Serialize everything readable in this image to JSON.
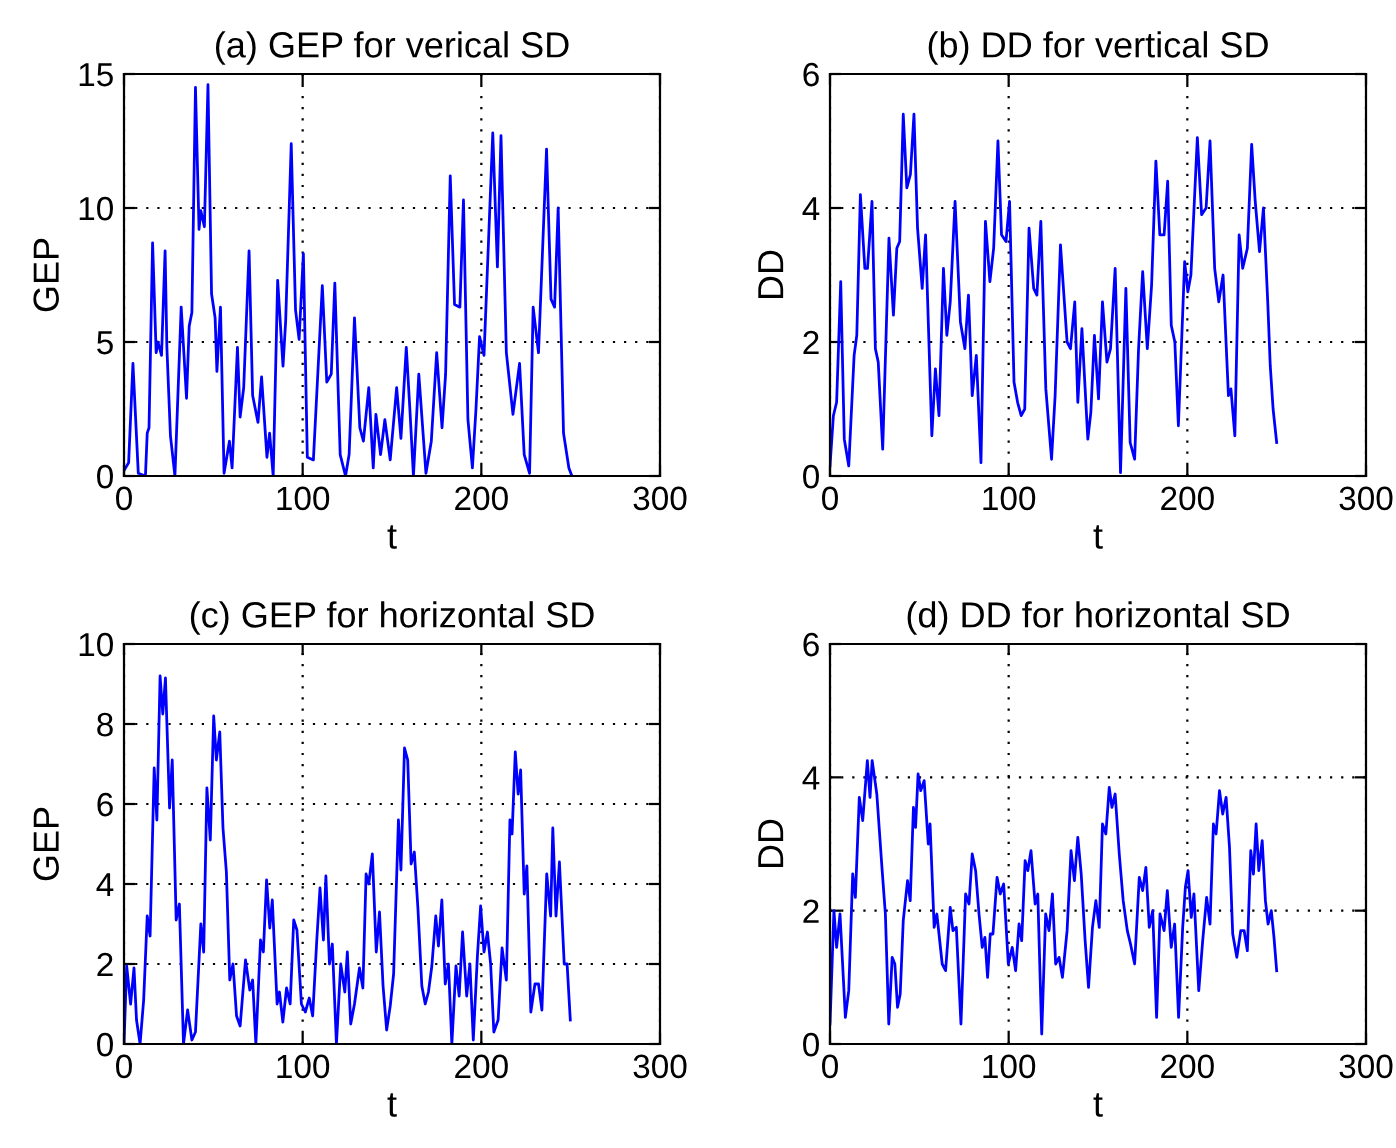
{
  "chart_data": [
    {
      "type": "line",
      "title": "(a) GEP for verical SD",
      "xlabel": "t",
      "ylabel": "GEP",
      "xlim": [
        0,
        300
      ],
      "xticks": [
        0,
        100,
        200,
        300
      ],
      "ylim": [
        0,
        15
      ],
      "yticks": [
        0,
        5,
        10,
        15
      ],
      "grid": true,
      "line_style": "solid",
      "marker": "none",
      "series": [
        {
          "color": "#0000ff",
          "x": [
            0,
            2.6,
            5,
            8,
            12,
            13,
            14,
            16,
            18,
            19,
            21,
            23,
            24,
            26,
            28.5,
            32,
            35,
            36.5,
            38,
            40,
            42,
            43,
            45,
            47,
            49,
            51,
            52,
            54,
            56,
            59,
            60.5,
            63.5,
            65,
            67,
            70,
            72,
            75,
            77,
            80,
            81.5,
            83.5,
            86,
            89,
            90.5,
            93.6,
            96,
            98,
            100.4,
            102.6,
            106,
            111,
            113.5,
            116,
            118,
            121,
            124,
            126,
            129,
            132,
            134,
            137,
            139.5,
            141,
            143.6,
            146,
            149,
            152.6,
            155,
            158,
            160,
            162,
            165,
            169,
            172,
            175,
            178,
            180,
            182.6,
            185,
            188,
            190,
            192.5,
            195,
            197,
            199,
            201.5,
            206.4,
            209,
            211,
            214,
            217.7,
            221.4,
            224,
            227,
            229,
            232,
            236.5,
            239,
            241,
            243,
            246,
            249,
            250.7
          ],
          "values": [
            0.2,
            0.5,
            4.2,
            0.1,
            0,
            1.6,
            1.8,
            8.7,
            4.6,
            5,
            4.5,
            8.4,
            4.8,
            1.5,
            0,
            6.3,
            2.9,
            5.6,
            6.1,
            14.5,
            9.2,
            9.9,
            9.3,
            14.6,
            6.8,
            5.9,
            3.9,
            6.3,
            0.1,
            1.3,
            0.3,
            4.8,
            2.2,
            3.3,
            8.4,
            3,
            2,
            3.7,
            0.7,
            1.6,
            0,
            7.3,
            4.1,
            5.8,
            12.4,
            6.2,
            5.1,
            8.3,
            0.7,
            0.6,
            7.1,
            3.5,
            3.8,
            7.2,
            0.8,
            0,
            0.8,
            5.9,
            1.8,
            1.3,
            3.3,
            0.3,
            2.3,
            0.8,
            2.1,
            0.6,
            3.3,
            1.4,
            4.8,
            2.5,
            0,
            3.8,
            0.1,
            1.3,
            4.6,
            1.8,
            3.8,
            11.2,
            6.4,
            6.3,
            10.3,
            2.1,
            0.3,
            2.5,
            5.2,
            4.5,
            12.8,
            7.8,
            12.7,
            4.6,
            2.3,
            4.2,
            0.8,
            0.1,
            6.3,
            4.6,
            12.2,
            6.6,
            6.3,
            10,
            1.6,
            0.3,
            0
          ]
        }
      ]
    },
    {
      "type": "line",
      "title": "(b) DD for vertical SD",
      "xlabel": "t",
      "ylabel": "DD",
      "xlim": [
        0,
        300
      ],
      "xticks": [
        0,
        100,
        200,
        300
      ],
      "ylim": [
        0,
        6
      ],
      "yticks": [
        0,
        2,
        4,
        6
      ],
      "grid": true,
      "line_style": "solid",
      "marker": "none",
      "series": [
        {
          "color": "#0000ff",
          "x": [
            0,
            1.9,
            3.7,
            6,
            8,
            10.5,
            13.5,
            15,
            17,
            19.5,
            21,
            23.5,
            25.4,
            27,
            29.5,
            33,
            35.5,
            37.4,
            39,
            41,
            43,
            45,
            47,
            49,
            51.6,
            53.5,
            57,
            59,
            61,
            63.5,
            65.4,
            67.3,
            70,
            73,
            75.5,
            77.5,
            79.6,
            81.9,
            84.5,
            87,
            89.5,
            91.6,
            94,
            96,
            98.5,
            100.5,
            103,
            105,
            107,
            109,
            111.4,
            114,
            115.8,
            118,
            120.8,
            124,
            126,
            129,
            132.7,
            134.6,
            137,
            138.7,
            141,
            144.3,
            146,
            148,
            150.3,
            152.5,
            155,
            157,
            159.6,
            162.6,
            165.6,
            168,
            170.5,
            172.7,
            175,
            177.6,
            180,
            182.4,
            184.6,
            187,
            189,
            191,
            193,
            195,
            198.5,
            200.3,
            202,
            205.6,
            208,
            210.5,
            212.7,
            215.3,
            217.6,
            220,
            223,
            224.4,
            226.6,
            229,
            231,
            233.6,
            236,
            238,
            240.4,
            242.6,
            245,
            246.4,
            248,
            250
          ],
          "values": [
            0.15,
            0.9,
            1.1,
            2.9,
            0.55,
            0.15,
            1.8,
            2.1,
            4.2,
            3.1,
            3.1,
            4.1,
            1.9,
            1.7,
            0.4,
            3.55,
            2.4,
            3.4,
            3.5,
            5.4,
            4.3,
            4.5,
            5.4,
            3.7,
            2.8,
            3.6,
            0.6,
            1.6,
            0.9,
            3.1,
            2.1,
            2.6,
            4.1,
            2.3,
            1.9,
            2.7,
            1.2,
            1.8,
            0.2,
            3.8,
            2.9,
            3.4,
            5,
            3.6,
            3.5,
            4.1,
            1.4,
            1.1,
            0.9,
            1,
            3.7,
            2.8,
            2.7,
            3.8,
            1.3,
            0.25,
            1.2,
            3.45,
            2,
            1.9,
            2.6,
            1.1,
            2.2,
            0.55,
            0.95,
            2.1,
            1.15,
            2.6,
            1.7,
            1.9,
            3.1,
            0.05,
            2.8,
            0.5,
            0.25,
            1.9,
            3.05,
            1.9,
            2.85,
            4.7,
            3.6,
            3.6,
            4.4,
            2.25,
            2,
            0.75,
            3.2,
            2.75,
            3,
            5.05,
            3.9,
            4,
            5,
            3.1,
            2.6,
            3,
            1.2,
            1.3,
            0.6,
            3.6,
            3.1,
            3.4,
            4.95,
            4.1,
            3.35,
            4,
            2.6,
            1.65,
            1.0,
            0.5
          ]
        }
      ]
    },
    {
      "type": "line",
      "title": "(c) GEP for horizontal SD",
      "xlabel": "t",
      "ylabel": "GEP",
      "xlim": [
        0,
        300
      ],
      "xticks": [
        0,
        100,
        200,
        300
      ],
      "ylim": [
        0,
        10
      ],
      "yticks": [
        0,
        2,
        4,
        6,
        8,
        10
      ],
      "grid": true,
      "line_style": "solid",
      "marker": "none",
      "series": [
        {
          "color": "#0000ff",
          "x": [
            0,
            1.5,
            3.7,
            5.6,
            7,
            9,
            11,
            13,
            14.6,
            16.9,
            18.4,
            20.2,
            21.7,
            23.2,
            25.5,
            27,
            29.2,
            31,
            33.3,
            35.6,
            38,
            40,
            43,
            44.6,
            46.4,
            48.3,
            50.2,
            51.7,
            53.6,
            55.4,
            57.3,
            59.2,
            61,
            63,
            65,
            68,
            70.4,
            72,
            73.8,
            76.4,
            78,
            79.8,
            81.6,
            83,
            85.7,
            87,
            88.9,
            91,
            93,
            95,
            96.8,
            99.3,
            101.5,
            103.7,
            105.6,
            107.9,
            109.7,
            111.6,
            113,
            115,
            116.6,
            118.9,
            121.3,
            123.6,
            125,
            126.9,
            129,
            131.8,
            133.7,
            135.5,
            137,
            139,
            141.2,
            143,
            145,
            147,
            149,
            150.9,
            153.6,
            155,
            157,
            158.8,
            160.7,
            162.5,
            164.5,
            166.7,
            168.6,
            170.4,
            172.3,
            174.5,
            176,
            177.9,
            179.8,
            181.6,
            183.5,
            185.8,
            187.6,
            189.5,
            191.8,
            193.6,
            195.5,
            197.8,
            199.6,
            201.5,
            203.4,
            205.2,
            207,
            209.4,
            211.6,
            214,
            216,
            217.2,
            219,
            220.6,
            222,
            224,
            225.5,
            227.7,
            230,
            232,
            233.9,
            236.6,
            238.8,
            240,
            241.8,
            243.7,
            246.4,
            248,
            249.8
          ],
          "values": [
            0,
            1.95,
            1,
            1.9,
            0.6,
            0,
            1.1,
            3.2,
            2.7,
            6.9,
            5.6,
            9.2,
            8.25,
            9.15,
            5.9,
            7.1,
            3.1,
            3.5,
            0,
            0.85,
            0.1,
            0.3,
            3,
            2.3,
            6.4,
            5.1,
            8.2,
            7.1,
            7.8,
            5.4,
            4.3,
            1.6,
            2,
            0.7,
            0.45,
            2.1,
            1.35,
            1.6,
            0,
            2.6,
            2.3,
            4.1,
            2.9,
            3.6,
            1,
            1.3,
            0.55,
            1.4,
            1,
            3.1,
            2.85,
            1,
            0.8,
            1.15,
            0.7,
            2.6,
            3.9,
            2.6,
            4.2,
            2,
            2.5,
            0,
            2,
            1.3,
            2.3,
            0.5,
            1,
            1.9,
            1.4,
            4.25,
            4,
            4.75,
            2.3,
            3.3,
            1.45,
            0.35,
            0.95,
            1.75,
            5.6,
            4.35,
            7.4,
            7.1,
            4.5,
            4.8,
            3.4,
            1.45,
            1,
            1.3,
            1.95,
            3.2,
            2.45,
            3.6,
            1.5,
            2,
            0,
            1.95,
            1.2,
            2.8,
            1.2,
            2,
            0.1,
            2.2,
            3.45,
            2.3,
            2.8,
            2,
            0.3,
            0.6,
            2.4,
            1.6,
            5.6,
            5.25,
            7.3,
            6.25,
            6.85,
            3.75,
            4.45,
            0.8,
            1.5,
            1.5,
            0.85,
            4.25,
            3.2,
            5.4,
            3.2,
            4.55,
            2,
            2,
            0.6
          ]
        }
      ]
    },
    {
      "type": "line",
      "title": "(d) DD for horizontal SD",
      "xlabel": "t",
      "ylabel": "DD",
      "xlim": [
        0,
        300
      ],
      "xticks": [
        0,
        100,
        200,
        300
      ],
      "ylim": [
        0,
        6
      ],
      "yticks": [
        0,
        2,
        4,
        6
      ],
      "grid": true,
      "line_style": "solid",
      "marker": "none",
      "series": [
        {
          "color": "#0000ff",
          "x": [
            0,
            2.2,
            3.7,
            5.6,
            8.6,
            10.5,
            12.7,
            14.2,
            16.4,
            18.3,
            20.9,
            22.4,
            23.6,
            26.2,
            29.2,
            31,
            32.9,
            34.8,
            36.3,
            37.8,
            39.3,
            41,
            43.4,
            44.9,
            46.7,
            47.9,
            49.3,
            50.8,
            52.7,
            55,
            56,
            58.3,
            59.8,
            62.8,
            64.7,
            67.3,
            68.8,
            70.7,
            73.3,
            75.9,
            77.8,
            79.6,
            81.5,
            83.4,
            85.2,
            86.7,
            88.2,
            89.7,
            91.2,
            93.5,
            95.3,
            97.2,
            99.8,
            102,
            103.9,
            105.8,
            107.3,
            109.2,
            110.7,
            112.5,
            114.8,
            116.3,
            118.5,
            120.7,
            122.6,
            124.5,
            126.3,
            128.2,
            130.1,
            132.7,
            134.9,
            136.8,
            138.7,
            140.6,
            142.8,
            144.7,
            146.9,
            148.8,
            150.7,
            152.5,
            154.4,
            156.3,
            157.8,
            159.6,
            161.9,
            164.1,
            166.4,
            168.2,
            170.5,
            173.1,
            175,
            176.8,
            178.7,
            180.6,
            182.8,
            184.7,
            187,
            188.8,
            191,
            192.9,
            195.1,
            197.4,
            198.9,
            200.4,
            202.2,
            203.7,
            206.4,
            208.6,
            210.8,
            212.7,
            214.6,
            216.1,
            218,
            219.8,
            221.7,
            223.6,
            225.4,
            227.7,
            229.9,
            231.8,
            233.6,
            235.5,
            237,
            238.5,
            240,
            241.9,
            243.7,
            245.2,
            247,
            248.5,
            250
          ],
          "values": [
            0.3,
            2,
            1.45,
            1.95,
            0.4,
            0.8,
            2.55,
            2.2,
            3.7,
            3.35,
            4.25,
            3.7,
            4.25,
            3.75,
            2.6,
            1.95,
            0.3,
            1.3,
            1.2,
            0.55,
            0.75,
            1.85,
            2.45,
            2.15,
            3.55,
            3.25,
            4.05,
            3.8,
            3.95,
            3,
            3.3,
            1.75,
            1.95,
            1.2,
            1.1,
            2.05,
            1.7,
            1.75,
            0.3,
            2.25,
            2.1,
            2.85,
            2.6,
            1.95,
            1.45,
            1.6,
            1,
            1.65,
            1.65,
            2.5,
            2.25,
            2.4,
            1.2,
            1.45,
            1.1,
            1.8,
            1.55,
            2.75,
            2.6,
            2.9,
            2.1,
            2.25,
            0.15,
            1.95,
            1.7,
            2.25,
            1.2,
            1.3,
            1,
            1.7,
            2.9,
            2.45,
            3.1,
            2.55,
            1.55,
            0.85,
            1.75,
            2.15,
            1.75,
            3.3,
            3.15,
            3.85,
            3.55,
            3.75,
            2.85,
            2.15,
            1.7,
            1.5,
            1.2,
            2.5,
            2.3,
            2.65,
            1.75,
            2,
            0.4,
            1.95,
            1.7,
            2.3,
            1.45,
            1.8,
            0.4,
            1.75,
            2.35,
            2.6,
            1.9,
            2.25,
            0.8,
            1.55,
            2.2,
            1.8,
            3.3,
            3.15,
            3.8,
            3.45,
            3.7,
            2.95,
            1.65,
            1.3,
            1.7,
            1.7,
            1.4,
            2.9,
            2.55,
            3.3,
            2.6,
            3.05,
            2.15,
            1.8,
            2.0,
            1.6,
            1.1
          ]
        }
      ]
    }
  ]
}
